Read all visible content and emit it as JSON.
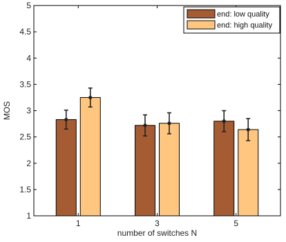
{
  "chart_data": {
    "type": "bar",
    "title": "",
    "xlabel": "number of switches N",
    "ylabel": "MOS",
    "categories": [
      "1",
      "3",
      "5"
    ],
    "ylim": [
      1,
      5
    ],
    "yticks": [
      1,
      1.5,
      2,
      2.5,
      3,
      3.5,
      4,
      4.5,
      5
    ],
    "ytick_labels": [
      "1",
      "1.5",
      "2",
      "2.5",
      "3",
      "3.5",
      "4",
      "4.5",
      "5"
    ],
    "legend_position": "top-right",
    "grid": false,
    "series": [
      {
        "name": "end: low quality",
        "color": "#a65c33",
        "values": [
          2.83,
          2.72,
          2.8
        ],
        "errors": [
          0.18,
          0.2,
          0.2
        ]
      },
      {
        "name": "end: high quality",
        "color": "#ffc680",
        "values": [
          3.25,
          2.76,
          2.64
        ],
        "errors": [
          0.18,
          0.2,
          0.21
        ]
      }
    ]
  }
}
